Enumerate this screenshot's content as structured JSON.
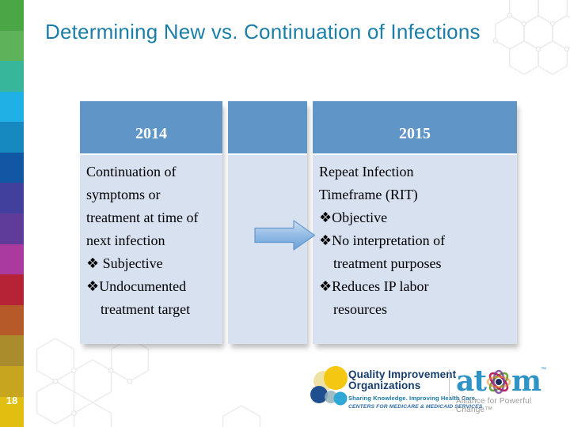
{
  "slide": {
    "title": "Determining New vs. Continuation of Infections",
    "page_number": "18"
  },
  "colors": {
    "title_text": "#1a7ea7",
    "table_header_bg": "#6095c8",
    "table_body_bg": "#d7e1f0",
    "strip": [
      "#4ba746",
      "#5db25a",
      "#38b69b",
      "#1fb1e5",
      "#1689c1",
      "#1157a4",
      "#41409c",
      "#5f3c99",
      "#aa3a9d",
      "#b62236",
      "#b55a28",
      "#aa8c2d",
      "#c7a51f",
      "#e1bf10"
    ],
    "arrow_fill_top": "#c9dcf2",
    "arrow_fill_bottom": "#6ba2d9",
    "qio_navy": "#173d6b",
    "qio_teal": "#1878a5",
    "atom_blue": "#2f93c5"
  },
  "table": {
    "columns": [
      {
        "header": "2014",
        "lines": [
          "Continuation of",
          "symptoms or",
          "treatment at time of",
          "next infection",
          "❖ Subjective",
          "❖Undocumented",
          "    treatment target"
        ]
      },
      {
        "header": "",
        "lines": []
      },
      {
        "header": "2015",
        "lines": [
          "Repeat Infection",
          "Timeframe (RIT)",
          "❖Objective",
          "❖No interpretation of",
          "    treatment purposes",
          "❖Reduces IP labor",
          "    resources"
        ]
      }
    ]
  },
  "footer": {
    "qio": {
      "line1": "Quality Improvement",
      "line2": "Organizations",
      "line3": "Sharing Knowledge. Improving Health Care.",
      "line4": "CENTERS FOR MEDICARE & MEDICAID SERVICES"
    },
    "atom": {
      "word_prefix": "at",
      "word_suffix": "m",
      "trademark": "™",
      "tagline": "Alliance for Powerful Change™"
    }
  }
}
